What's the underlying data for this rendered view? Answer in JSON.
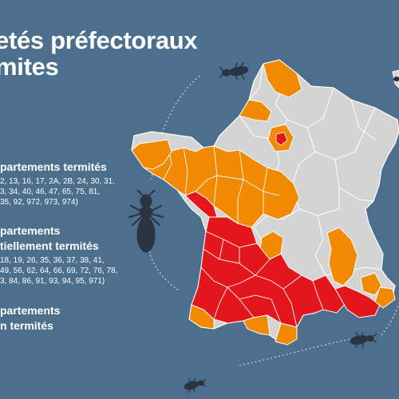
{
  "title": {
    "line1": "etés préfectoraux",
    "line2": "mites"
  },
  "legend": [
    {
      "heading": "partements termités",
      "codes": [
        "2, 13, 16, 17, 2A, 2B, 24, 30, 31,",
        "3, 34, 40, 46, 47, 65, 75, 81,",
        "35, 92, 972, 973, 974)"
      ],
      "color": "#e3171b"
    },
    {
      "heading_line1": "partements",
      "heading_line2": "tiellement termités",
      "codes": [
        "18, 19, 26, 35, 36, 37, 38, 41,",
        "49, 56, 62, 64, 66, 69, 72, 76, 78,",
        "3, 84, 86, 91, 93, 94, 95, 971)"
      ],
      "color": "#f18a00"
    },
    {
      "heading_line1": "partements",
      "heading_line2": "n termités",
      "color": "#d4d4d4"
    }
  ],
  "colors": {
    "background": "#4d6f8e",
    "termite": "#2a3440",
    "border": "#ffffff"
  },
  "icons": [
    "termite-icon-large",
    "termite-icon-top",
    "termite-icon-bottom-right",
    "termite-icon-bottom"
  ]
}
